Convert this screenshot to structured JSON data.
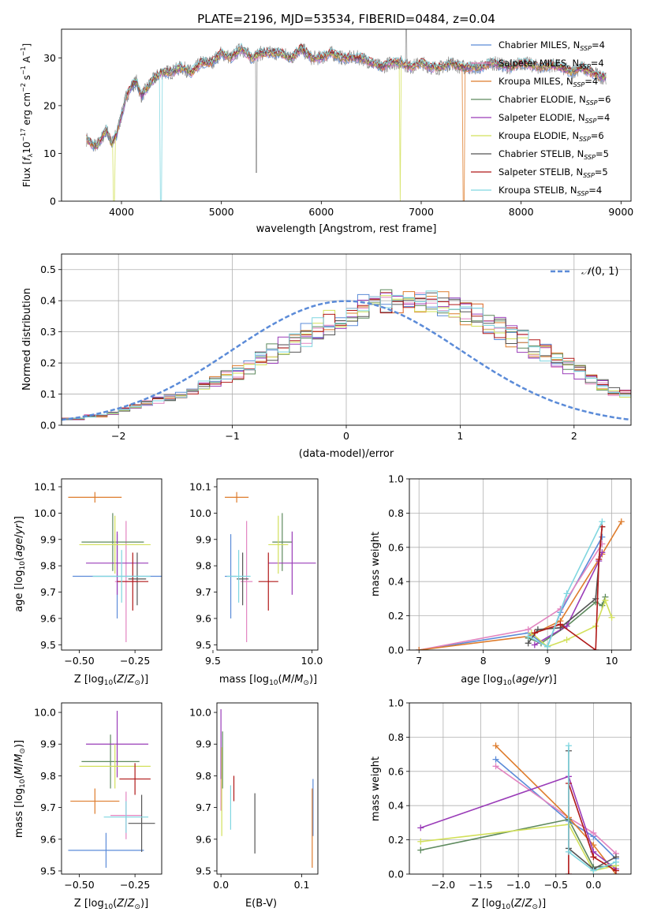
{
  "figure": {
    "title": "PLATE=2196, MJD=53534, FIBERID=0484, z=0.04",
    "colors": {
      "Chabrier MILES": "#5b8bd8",
      "Salpeter MILES": "#e284c0",
      "Kroupa MILES": "#de7c2c",
      "Chabrier ELODIE": "#5e8a5e",
      "Salpeter ELODIE": "#9a3cb8",
      "Kroupa ELODIE": "#d2e05a",
      "Chabrier STELIB": "#555555",
      "Salpeter STELIB": "#b01818",
      "Kroupa STELIB": "#7fd6e0"
    }
  },
  "chart_data": [
    {
      "id": "spectrum",
      "type": "line",
      "title": "PLATE=2196, MJD=53534, FIBERID=0484, z=0.04",
      "xlabel": "wavelength [Angstrom, rest frame]",
      "ylabel": "Flux [f_λ 10^-17 erg cm^-2 s^-1 A^-1]",
      "xlim": [
        3400,
        9100
      ],
      "ylim": [
        0,
        36
      ],
      "xticks": [
        4000,
        5000,
        6000,
        7000,
        8000,
        9000
      ],
      "yticks": [
        0,
        10,
        20,
        30
      ],
      "grid": false,
      "legend_position": "upper-right",
      "data_color": "#8a8a8a",
      "data": {
        "x": [
          3650,
          3700,
          3750,
          3800,
          3850,
          3900,
          3950,
          4000,
          4050,
          4100,
          4150,
          4200,
          4300,
          4400,
          4500,
          4600,
          4700,
          4800,
          4900,
          5000,
          5100,
          5200,
          5300,
          5400,
          5500,
          5600,
          5700,
          5800,
          5900,
          6000,
          6100,
          6200,
          6300,
          6400,
          6500,
          6600,
          6700,
          6800,
          6900,
          7000,
          7100,
          7200,
          7300,
          7400,
          7500,
          7600,
          7700,
          7800,
          7900,
          8000,
          8100,
          8200,
          8300,
          8400,
          8500,
          8600,
          8700,
          8800
        ],
        "y": [
          13,
          12,
          11.5,
          13,
          15,
          12,
          14,
          18,
          22,
          24,
          25,
          22,
          25,
          27,
          27,
          28,
          27,
          29,
          29,
          31,
          30,
          32,
          30,
          31,
          31,
          31,
          30,
          32,
          30,
          30,
          31,
          30,
          30,
          30,
          29,
          28,
          29,
          29,
          28,
          29,
          28,
          28,
          29,
          28,
          28,
          28,
          29,
          28.5,
          28,
          29,
          28.5,
          28,
          28.5,
          28,
          27,
          28,
          27,
          26
        ]
      },
      "series": [
        {
          "name": "Chabrier MILES, N_SSP=4"
        },
        {
          "name": "Salpeter MILES, N_SSP=4"
        },
        {
          "name": "Kroupa MILES, N_SSP=4"
        },
        {
          "name": "Chabrier ELODIE, N_SSP=6"
        },
        {
          "name": "Salpeter ELODIE, N_SSP=4"
        },
        {
          "name": "Kroupa ELODIE, N_SSP=6"
        },
        {
          "name": "Chabrier STELIB, N_SSP=5"
        },
        {
          "name": "Salpeter STELIB, N_SSP=5"
        },
        {
          "name": "Kroupa STELIB, N_SSP=4"
        }
      ],
      "legend": [
        {
          "label": "Chabrier MILES, N",
          "sub": "SSP",
          "tail": "=4"
        },
        {
          "label": "Salpeter MILES, N",
          "sub": "SSP",
          "tail": "=4"
        },
        {
          "label": "Kroupa MILES, N",
          "sub": "SSP",
          "tail": "=4"
        },
        {
          "label": "Chabrier ELODIE, N",
          "sub": "SSP",
          "tail": "=6"
        },
        {
          "label": "Salpeter ELODIE, N",
          "sub": "SSP",
          "tail": "=4"
        },
        {
          "label": "Kroupa ELODIE, N",
          "sub": "SSP",
          "tail": "=6"
        },
        {
          "label": "Chabrier STELIB, N",
          "sub": "SSP",
          "tail": "=5"
        },
        {
          "label": "Salpeter STELIB, N",
          "sub": "SSP",
          "tail": "=5"
        },
        {
          "label": "Kroupa STELIB, N",
          "sub": "SSP",
          "tail": "=4"
        }
      ]
    },
    {
      "id": "residuals",
      "type": "line",
      "xlabel": "(data-model)/error",
      "ylabel": "Normed distribution",
      "xlim": [
        -2.5,
        2.5
      ],
      "ylim": [
        0,
        0.55
      ],
      "xticks": [
        -2,
        -1,
        0,
        1,
        2
      ],
      "yticks": [
        0.0,
        0.1,
        0.2,
        0.3,
        0.4,
        0.5
      ],
      "grid": true,
      "legend_position": "upper-right",
      "reference_curve": {
        "name": "N(0,1)",
        "mean": 0,
        "sigma": 1,
        "color": "#5b8bd8",
        "style": "dashed"
      },
      "bin_width": 0.1,
      "bin_start": -2.5,
      "base_values": [
        0.02,
        0.02,
        0.03,
        0.03,
        0.04,
        0.05,
        0.06,
        0.07,
        0.08,
        0.09,
        0.1,
        0.11,
        0.13,
        0.14,
        0.16,
        0.17,
        0.19,
        0.21,
        0.23,
        0.25,
        0.27,
        0.29,
        0.31,
        0.33,
        0.35,
        0.36,
        0.38,
        0.39,
        0.4,
        0.4,
        0.4,
        0.4,
        0.4,
        0.39,
        0.38,
        0.36,
        0.35,
        0.33,
        0.31,
        0.29,
        0.27,
        0.25,
        0.23,
        0.21,
        0.19,
        0.17,
        0.15,
        0.13,
        0.11,
        0.1,
        0.08,
        0.07,
        0.06,
        0.05,
        0.04,
        0.04,
        0.03,
        0.03,
        0.02,
        0.02
      ]
    },
    {
      "id": "age_vs_z",
      "type": "scatter",
      "xlabel": "Z [log10(Z/Z⊙)]",
      "ylabel": "age  [log10(age/yr)]",
      "xlim": [
        -0.58,
        -0.13
      ],
      "ylim": [
        9.48,
        10.13
      ],
      "xticks": [
        -0.5,
        -0.25
      ],
      "xticklabels": [
        "−0.50",
        "−0.25"
      ],
      "yticks": [
        9.5,
        9.6,
        9.7,
        9.8,
        9.9,
        10.0,
        10.1
      ],
      "grid": false,
      "points": [
        {
          "s": 0,
          "x": -0.33,
          "xerr": 0.2,
          "y": 9.76,
          "yerr": 0.16
        },
        {
          "s": 1,
          "x": -0.29,
          "xerr": 0.05,
          "y": 9.74,
          "yerr": 0.23
        },
        {
          "s": 2,
          "x": -0.43,
          "xerr": 0.12,
          "y": 10.06,
          "yerr": 0.02
        },
        {
          "s": 3,
          "x": -0.35,
          "xerr": 0.14,
          "y": 9.89,
          "yerr": 0.11
        },
        {
          "s": 4,
          "x": -0.33,
          "xerr": 0.14,
          "y": 9.81,
          "yerr": 0.12
        },
        {
          "s": 5,
          "x": -0.34,
          "xerr": 0.16,
          "y": 9.88,
          "yerr": 0.11
        },
        {
          "s": 6,
          "x": -0.24,
          "xerr": 0.04,
          "y": 9.75,
          "yerr": 0.1
        },
        {
          "s": 7,
          "x": -0.26,
          "xerr": 0.07,
          "y": 9.74,
          "yerr": 0.11
        },
        {
          "s": 8,
          "x": -0.31,
          "xerr": 0.13,
          "y": 9.76,
          "yerr": 0.1
        }
      ]
    },
    {
      "id": "age_vs_mass",
      "type": "scatter",
      "xlabel": "mass [log10(M/M⊙)]",
      "ylabel": "",
      "xlim": [
        9.52,
        10.03
      ],
      "ylim": [
        9.48,
        10.13
      ],
      "xticks": [
        9.5,
        10.0
      ],
      "xticklabels": [
        "9.5",
        "10.0"
      ],
      "yticks": [
        9.5,
        9.6,
        9.7,
        9.8,
        9.9,
        10.0,
        10.1
      ],
      "grid": false,
      "points": [
        {
          "s": 0,
          "x": 9.59,
          "xerr": 0.03,
          "y": 9.76,
          "yerr": 0.16
        },
        {
          "s": 1,
          "x": 9.67,
          "xerr": 0.03,
          "y": 9.74,
          "yerr": 0.23
        },
        {
          "s": 2,
          "x": 9.62,
          "xerr": 0.06,
          "y": 10.06,
          "yerr": 0.02
        },
        {
          "s": 3,
          "x": 9.85,
          "xerr": 0.05,
          "y": 9.89,
          "yerr": 0.11
        },
        {
          "s": 4,
          "x": 9.9,
          "xerr": 0.12,
          "y": 9.81,
          "yerr": 0.12
        },
        {
          "s": 5,
          "x": 9.83,
          "xerr": 0.05,
          "y": 9.88,
          "yerr": 0.11
        },
        {
          "s": 6,
          "x": 9.65,
          "xerr": 0.03,
          "y": 9.75,
          "yerr": 0.1
        },
        {
          "s": 7,
          "x": 9.78,
          "xerr": 0.05,
          "y": 9.74,
          "yerr": 0.11
        },
        {
          "s": 8,
          "x": 9.63,
          "xerr": 0.06,
          "y": 9.76,
          "yerr": 0.1
        }
      ]
    },
    {
      "id": "weight_vs_age",
      "type": "line",
      "xlabel": "age  [log10(age/yr)]",
      "ylabel": "mass weight",
      "xlim": [
        6.85,
        10.3
      ],
      "ylim": [
        0,
        1
      ],
      "xticks": [
        7,
        8,
        9,
        10
      ],
      "yticks": [
        0.0,
        0.2,
        0.4,
        0.6,
        0.8,
        1.0
      ],
      "grid": true,
      "series": [
        {
          "s": 0,
          "x": [
            7.0,
            8.7,
            9.0,
            9.2,
            9.85
          ],
          "y": [
            0.0,
            0.1,
            0.02,
            0.22,
            0.66
          ]
        },
        {
          "s": 1,
          "x": [
            7.0,
            8.7,
            9.2,
            9.85
          ],
          "y": [
            0.0,
            0.12,
            0.24,
            0.62
          ]
        },
        {
          "s": 2,
          "x": [
            7.0,
            8.7,
            9.2,
            9.85,
            10.15
          ],
          "y": [
            0.0,
            0.08,
            0.17,
            0.56,
            0.75
          ]
        },
        {
          "s": 3,
          "x": [
            8.7,
            8.9,
            9.3,
            9.75,
            9.85,
            9.9
          ],
          "y": [
            0.07,
            0.04,
            0.14,
            0.28,
            0.26,
            0.31
          ]
        },
        {
          "s": 4,
          "x": [
            8.8,
            9.3,
            9.8,
            9.85
          ],
          "y": [
            0.03,
            0.14,
            0.52,
            0.57
          ]
        },
        {
          "s": 5,
          "x": [
            8.75,
            9.0,
            9.3,
            9.75,
            9.9,
            10.0
          ],
          "y": [
            0.1,
            0.02,
            0.06,
            0.14,
            0.29,
            0.19
          ]
        },
        {
          "s": 6,
          "x": [
            8.7,
            8.85,
            9.2,
            9.75,
            9.85
          ],
          "y": [
            0.04,
            0.12,
            0.13,
            0.3,
            0.72
          ]
        },
        {
          "s": 7,
          "x": [
            8.8,
            9.2,
            9.75,
            9.8,
            9.85
          ],
          "y": [
            0.1,
            0.15,
            0.0,
            0.53,
            0.72
          ]
        },
        {
          "s": 8,
          "x": [
            8.7,
            9.0,
            9.3,
            9.85
          ],
          "y": [
            0.08,
            0.02,
            0.33,
            0.75
          ]
        }
      ]
    },
    {
      "id": "mass_vs_z",
      "type": "scatter",
      "xlabel": "Z [log10(Z/Z⊙)]",
      "ylabel": "mass [log10(M/M⊙)]",
      "xlim": [
        -0.58,
        -0.13
      ],
      "ylim": [
        9.49,
        10.03
      ],
      "xticks": [
        -0.5,
        -0.25
      ],
      "xticklabels": [
        "−0.50",
        "−0.25"
      ],
      "yticks": [
        9.5,
        9.6,
        9.7,
        9.8,
        9.9,
        10.0
      ],
      "grid": false,
      "points": [
        {
          "s": 0,
          "x": -0.38,
          "xerr": 0.17,
          "y": 9.565,
          "yerr": 0.055
        },
        {
          "s": 1,
          "x": -0.29,
          "xerr": 0.07,
          "y": 9.675,
          "yerr": 0.075
        },
        {
          "s": 2,
          "x": -0.43,
          "xerr": 0.11,
          "y": 9.72,
          "yerr": 0.04
        },
        {
          "s": 3,
          "x": -0.36,
          "xerr": 0.13,
          "y": 9.845,
          "yerr": 0.085
        },
        {
          "s": 4,
          "x": -0.33,
          "xerr": 0.14,
          "y": 9.9,
          "yerr": 0.105
        },
        {
          "s": 5,
          "x": -0.34,
          "xerr": 0.16,
          "y": 9.83,
          "yerr": 0.07
        },
        {
          "s": 6,
          "x": -0.22,
          "xerr": 0.06,
          "y": 9.65,
          "yerr": 0.09
        },
        {
          "s": 7,
          "x": -0.25,
          "xerr": 0.07,
          "y": 9.79,
          "yerr": 0.05
        },
        {
          "s": 8,
          "x": -0.29,
          "xerr": 0.1,
          "y": 9.67,
          "yerr": 0.05
        }
      ]
    },
    {
      "id": "mass_vs_ebv",
      "type": "scatter",
      "xlabel": "E(B-V)",
      "ylabel": "",
      "xlim": [
        -0.005,
        0.12
      ],
      "ylim": [
        9.49,
        10.03
      ],
      "xticks": [
        0.0,
        0.1
      ],
      "xticklabels": [
        "0.0",
        "0.1"
      ],
      "yticks": [
        9.5,
        9.6,
        9.7,
        9.8,
        9.9,
        10.0
      ],
      "grid": false,
      "points": [
        {
          "s": 0,
          "x": 0.114,
          "xerr": 0,
          "y": 9.7,
          "yerr": 0.09
        },
        {
          "s": 1,
          "x": 0.0,
          "xerr": 0,
          "y": 9.79,
          "yerr": 0.1
        },
        {
          "s": 2,
          "x": 0.113,
          "xerr": 0,
          "y": 9.635,
          "yerr": 0.125
        },
        {
          "s": 3,
          "x": 0.002,
          "xerr": 0,
          "y": 9.85,
          "yerr": 0.09
        },
        {
          "s": 4,
          "x": 0.0,
          "xerr": 0,
          "y": 9.9,
          "yerr": 0.11
        },
        {
          "s": 5,
          "x": 0.001,
          "xerr": 0,
          "y": 9.75,
          "yerr": 0.14
        },
        {
          "s": 6,
          "x": 0.042,
          "xerr": 0,
          "y": 9.65,
          "yerr": 0.095
        },
        {
          "s": 7,
          "x": 0.016,
          "xerr": 0,
          "y": 9.76,
          "yerr": 0.04
        },
        {
          "s": 8,
          "x": 0.012,
          "xerr": 0,
          "y": 9.7,
          "yerr": 0.07
        }
      ]
    },
    {
      "id": "weight_vs_z",
      "type": "line",
      "xlabel": "Z [log10(Z/Z⊙)]",
      "ylabel": "mass weight",
      "xlim": [
        -2.45,
        0.5
      ],
      "ylim": [
        0,
        1
      ],
      "xticks": [
        -2.0,
        -1.5,
        -1.0,
        -0.5,
        0.0
      ],
      "xticklabels": [
        "−2.0",
        "−1.5",
        "−1.0",
        "−0.5",
        "0.0"
      ],
      "yticks": [
        0.0,
        0.2,
        0.4,
        0.6,
        0.8,
        1.0
      ],
      "grid": true,
      "series": [
        {
          "s": 0,
          "x": [
            -1.3,
            -0.33,
            0.0,
            0.3
          ],
          "y": [
            0.67,
            0.31,
            0.22,
            0.09
          ]
        },
        {
          "s": 1,
          "x": [
            -1.3,
            -0.33,
            0.0,
            0.3
          ],
          "y": [
            0.63,
            0.33,
            0.24,
            0.12
          ]
        },
        {
          "s": 2,
          "x": [
            -1.3,
            -0.33,
            0.0,
            0.3
          ],
          "y": [
            0.75,
            0.33,
            0.17,
            0.0
          ]
        },
        {
          "s": 3,
          "x": [
            -2.3,
            -0.33,
            0.0,
            0.3
          ],
          "y": [
            0.14,
            0.32,
            0.04,
            0.05
          ]
        },
        {
          "s": 4,
          "x": [
            -2.3,
            -0.33,
            0.0,
            0.3
          ],
          "y": [
            0.27,
            0.57,
            0.13,
            0.03
          ]
        },
        {
          "s": 5,
          "x": [
            -2.3,
            -0.33,
            0.0,
            0.3
          ],
          "y": [
            0.19,
            0.29,
            0.02,
            0.05
          ]
        },
        {
          "s": 6,
          "x": [
            -0.33,
            -0.33,
            0.0,
            0.3
          ],
          "y": [
            0.72,
            0.15,
            0.03,
            0.1
          ]
        },
        {
          "s": 7,
          "x": [
            -0.33,
            -0.33,
            0.0,
            0.3
          ],
          "y": [
            0.0,
            0.53,
            0.1,
            0.02
          ]
        },
        {
          "s": 8,
          "x": [
            -0.33,
            -0.33,
            0.0,
            0.3
          ],
          "y": [
            0.75,
            0.13,
            0.02,
            0.07
          ]
        }
      ]
    }
  ]
}
